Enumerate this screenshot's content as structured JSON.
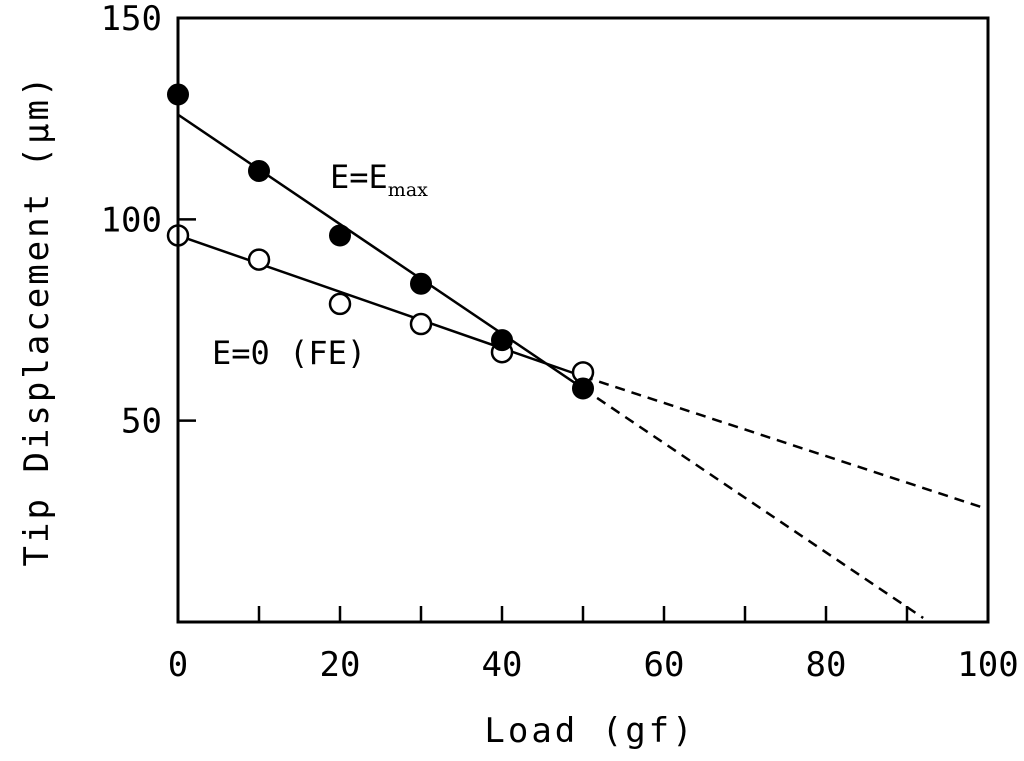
{
  "chart_data": {
    "type": "scatter",
    "xlabel": "Load (gf)",
    "ylabel": "Tip Displacement (μm)",
    "xlim": [
      0,
      100
    ],
    "ylim": [
      0,
      150
    ],
    "x_ticks_major": [
      0,
      20,
      40,
      60,
      80,
      100
    ],
    "x_ticks_minor": [
      10,
      30,
      50,
      70,
      90
    ],
    "y_ticks": [
      50,
      100,
      150
    ],
    "grid": false,
    "series": [
      {
        "name": "E=E max",
        "marker": "filled-circle",
        "x": [
          0,
          10,
          20,
          30,
          40,
          50
        ],
        "y": [
          131,
          112,
          96,
          84,
          70,
          58
        ],
        "fit_line": {
          "x0": 0,
          "y0": 126,
          "x1": 50,
          "y1": 58
        },
        "extrapolation": {
          "x0": 50,
          "y0": 58,
          "x1": 92,
          "y1": 1
        }
      },
      {
        "name": "E=0 (FE)",
        "marker": "open-circle",
        "x": [
          0,
          10,
          20,
          30,
          40,
          50
        ],
        "y": [
          96,
          90,
          79,
          74,
          67,
          62
        ],
        "fit_line": {
          "x0": 0,
          "y0": 96,
          "x1": 50,
          "y1": 61
        },
        "extrapolation": {
          "x0": 50,
          "y0": 61,
          "x1": 100,
          "y1": 28
        }
      }
    ],
    "annotations": {
      "emax_main": "E=E",
      "emax_sub": "max",
      "e0": "E=0 (FE)"
    }
  }
}
